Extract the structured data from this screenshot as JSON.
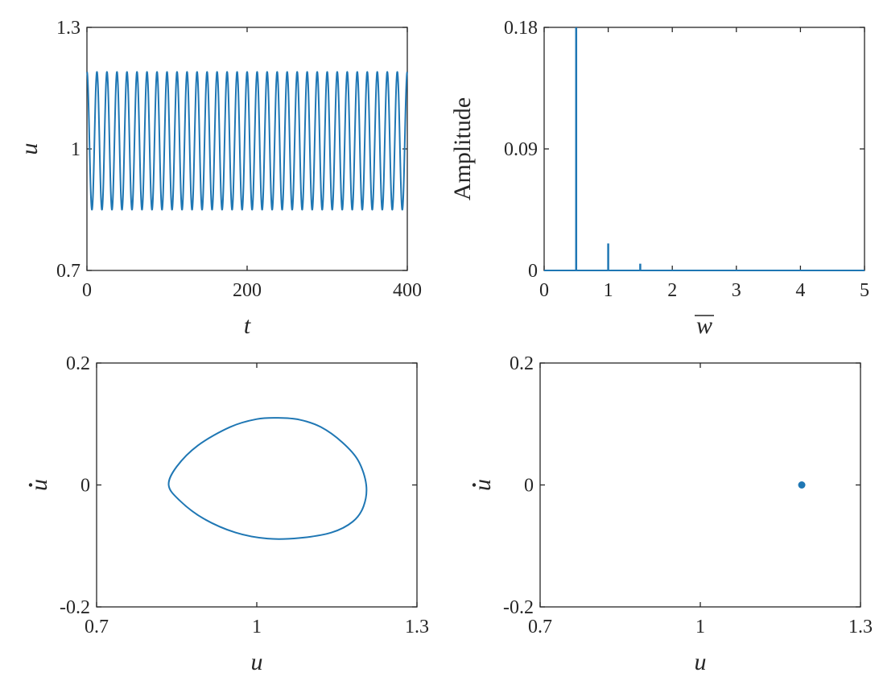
{
  "chart_data": [
    {
      "id": "time-series",
      "type": "line",
      "xlabel": "t",
      "ylabel": "u",
      "xlim": [
        0,
        400
      ],
      "ylim": [
        0.7,
        1.3
      ],
      "xticks": [
        0,
        200,
        400
      ],
      "xtick_labels": [
        "0",
        "200",
        "400"
      ],
      "yticks": [
        0.7,
        1,
        1.3
      ],
      "ytick_labels": [
        "0.7",
        "1",
        "1.3"
      ],
      "series": [
        {
          "kind": "sinusoid",
          "mean": 1.02,
          "amplitude": 0.17,
          "period": 12.5,
          "t_start": 0,
          "t_end": 400,
          "color": "#1f77b4"
        }
      ]
    },
    {
      "id": "spectrum",
      "type": "line",
      "xlabel": "w",
      "xlabel_overline": true,
      "ylabel": "Amplitude",
      "xlim": [
        0,
        5
      ],
      "ylim": [
        0,
        0.18
      ],
      "xticks": [
        0,
        1,
        2,
        3,
        4,
        5
      ],
      "xtick_labels": [
        "0",
        "1",
        "2",
        "3",
        "4",
        "5"
      ],
      "yticks": [
        0,
        0.09,
        0.18
      ],
      "ytick_labels": [
        "0",
        "0.09",
        "0.18"
      ],
      "series": [
        {
          "kind": "spikes",
          "x": [
            0.5,
            1.0,
            1.5
          ],
          "y": [
            0.18,
            0.02,
            0.005
          ],
          "color": "#1f77b4"
        }
      ]
    },
    {
      "id": "phase-portrait",
      "type": "line",
      "xlabel": "u",
      "ylabel": "u",
      "ylabel_dot": true,
      "xlim": [
        0.7,
        1.3
      ],
      "ylim": [
        -0.2,
        0.2
      ],
      "xticks": [
        0.7,
        1,
        1.3
      ],
      "xtick_labels": [
        "0.7",
        "1",
        "1.3"
      ],
      "yticks": [
        -0.2,
        0,
        0.2
      ],
      "ytick_labels": [
        "-0.2",
        "0",
        "0.2"
      ],
      "series": [
        {
          "kind": "closed-curve",
          "x": [
            0.835,
            0.85,
            0.89,
            0.95,
            1.0,
            1.04,
            1.08,
            1.12,
            1.16,
            1.19,
            1.205,
            1.2,
            1.18,
            1.14,
            1.08,
            1.02,
            0.96,
            0.9,
            0.855,
            0.835
          ],
          "y": [
            0.0,
            0.03,
            0.065,
            0.095,
            0.108,
            0.11,
            0.107,
            0.095,
            0.07,
            0.04,
            0.0,
            -0.035,
            -0.06,
            -0.078,
            -0.087,
            -0.088,
            -0.078,
            -0.055,
            -0.025,
            0.0
          ],
          "color": "#1f77b4"
        }
      ]
    },
    {
      "id": "poincare-section",
      "type": "scatter",
      "xlabel": "u",
      "ylabel": "u",
      "ylabel_dot": true,
      "xlim": [
        0.7,
        1.3
      ],
      "ylim": [
        -0.2,
        0.2
      ],
      "xticks": [
        0.7,
        1,
        1.3
      ],
      "xtick_labels": [
        "0.7",
        "1",
        "1.3"
      ],
      "yticks": [
        -0.2,
        0,
        0.2
      ],
      "ytick_labels": [
        "-0.2",
        "0",
        "0.2"
      ],
      "series": [
        {
          "kind": "points",
          "x": [
            1.19
          ],
          "y": [
            0.0
          ],
          "color": "#1f77b4"
        }
      ]
    }
  ]
}
